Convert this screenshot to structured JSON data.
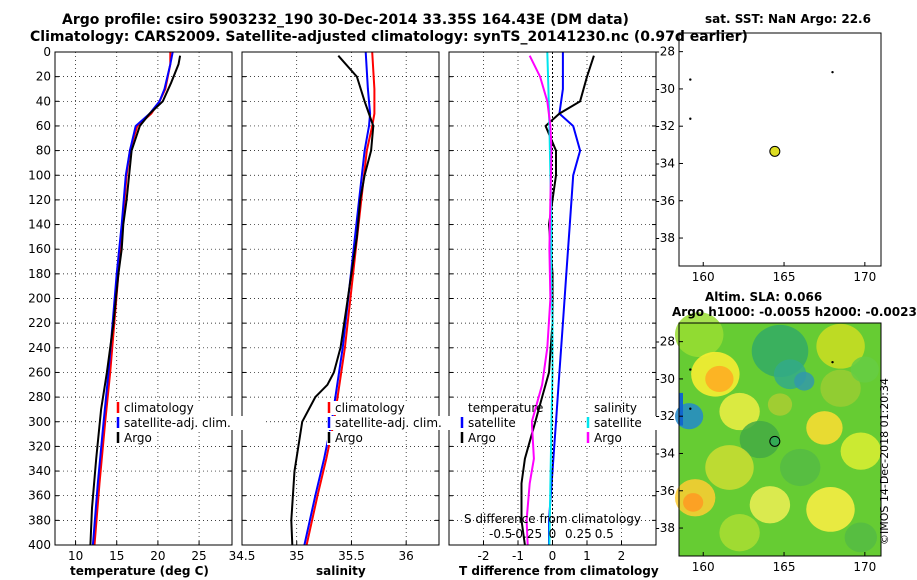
{
  "header": {
    "title_line1": "Argo profile: csiro 5903232_190 30-Dec-2014 33.35S 164.43E (DM data)",
    "title_line2": "Climatology: CARS2009. Satellite-adjusted climatology: synTS_20141230.nc (0.97d earlier)"
  },
  "colors": {
    "climatology": "#ff0000",
    "satellite": "#0000ff",
    "argo": "#000000",
    "sal_satellite": "#00e5ee",
    "sal_argo": "#ff00ff"
  },
  "chart_data": [
    {
      "id": "temperature",
      "type": "line",
      "xlabel": "temperature (deg C)",
      "ylabel": "",
      "xlim": [
        7.5,
        29
      ],
      "ylim": [
        400,
        0
      ],
      "xticks": [
        10,
        15,
        20,
        25
      ],
      "yticks": [
        0,
        20,
        40,
        60,
        80,
        100,
        120,
        140,
        160,
        180,
        200,
        220,
        240,
        260,
        280,
        300,
        320,
        340,
        360,
        380,
        400
      ],
      "legend": [
        "climatology",
        "satellite-adj. clim.",
        "Argo"
      ],
      "series": [
        {
          "name": "climatology",
          "color": "#ff0000",
          "x": [
            21.5,
            21.5,
            20.9,
            20.2,
            19.2,
            17.5,
            16.6,
            16.2,
            15.7,
            15.2,
            14.7,
            14.2,
            13.6,
            12.9,
            12.3
          ],
          "y": [
            0,
            10,
            30,
            40,
            50,
            60,
            80,
            100,
            140,
            180,
            220,
            260,
            300,
            350,
            400
          ]
        },
        {
          "name": "satellite-adj. clim.",
          "color": "#0000ff",
          "x": [
            21.8,
            21.5,
            20.8,
            20.2,
            19.0,
            17.3,
            16.6,
            16.1,
            15.6,
            15.0,
            14.5,
            14.0,
            13.4,
            12.7,
            12.1
          ],
          "y": [
            0,
            10,
            30,
            40,
            50,
            60,
            80,
            100,
            140,
            180,
            220,
            260,
            300,
            350,
            400
          ]
        },
        {
          "name": "Argo",
          "color": "#000000",
          "x": [
            22.7,
            22.5,
            21.6,
            20.6,
            19.0,
            17.8,
            16.8,
            16.5,
            16.2,
            15.8,
            15.6,
            15.2,
            14.9,
            14.6,
            14.2,
            13.8,
            13.1,
            12.5,
            12.0,
            11.8
          ],
          "y": [
            3,
            10,
            25,
            40,
            50,
            60,
            80,
            100,
            120,
            140,
            160,
            180,
            200,
            220,
            240,
            260,
            290,
            330,
            370,
            400
          ]
        }
      ]
    },
    {
      "id": "salinity",
      "type": "line",
      "xlabel": "salinity",
      "ylabel": "",
      "xlim": [
        34.5,
        36.3
      ],
      "ylim": [
        400,
        0
      ],
      "xticks": [
        34.5,
        35,
        35.5,
        36
      ],
      "tick_labels": [
        "34.5",
        "35",
        "35.5",
        "36"
      ],
      "legend": [
        "climatology",
        "satellite-adj. clim.",
        "Argo"
      ],
      "series": [
        {
          "name": "climatology",
          "color": "#ff0000",
          "x": [
            35.69,
            35.71,
            35.71,
            35.69,
            35.64,
            35.59,
            35.54,
            35.49,
            35.44,
            35.39,
            35.34,
            35.27,
            35.19,
            35.09
          ],
          "y": [
            0,
            30,
            50,
            60,
            80,
            120,
            160,
            200,
            240,
            270,
            300,
            330,
            360,
            400
          ]
        },
        {
          "name": "satellite-adj. clim.",
          "color": "#0000ff",
          "x": [
            35.63,
            35.65,
            35.67,
            35.66,
            35.62,
            35.57,
            35.52,
            35.47,
            35.42,
            35.37,
            35.32,
            35.25,
            35.17,
            35.07
          ],
          "y": [
            0,
            30,
            50,
            60,
            80,
            120,
            160,
            200,
            240,
            270,
            300,
            330,
            360,
            400
          ]
        },
        {
          "name": "Argo",
          "color": "#000000",
          "x": [
            35.38,
            35.55,
            35.62,
            35.7,
            35.68,
            35.62,
            35.58,
            35.55,
            35.5,
            35.45,
            35.4,
            35.34,
            35.28,
            35.17,
            35.05,
            34.98,
            34.95,
            34.96
          ],
          "y": [
            3,
            20,
            40,
            60,
            80,
            100,
            120,
            150,
            180,
            210,
            240,
            260,
            270,
            280,
            300,
            340,
            380,
            400
          ]
        }
      ]
    },
    {
      "id": "difference",
      "type": "line",
      "xlabel": "T difference from climatology",
      "x2label": "S difference from climatology",
      "xlim": [
        -3,
        3
      ],
      "ylim": [
        400,
        0
      ],
      "xticks": [
        -2,
        -1,
        0,
        1,
        2
      ],
      "x2ticks": [
        -0.5,
        -0.25,
        0,
        0.25,
        0.5
      ],
      "legend_temperature": {
        "title": "temperature",
        "items": [
          "satellite",
          "Argo"
        ]
      },
      "legend_salinity": {
        "title": "salinity",
        "items": [
          "satellite",
          "Argo"
        ]
      },
      "series": [
        {
          "name": "temperature satellite",
          "color": "#0000ff",
          "x": [
            0.3,
            0.3,
            0.2,
            0.6,
            0.8,
            0.6,
            0.5,
            0.4,
            0.3,
            0.2,
            0.1,
            0.0,
            -0.1,
            -0.1
          ],
          "y": [
            0,
            30,
            50,
            60,
            80,
            100,
            140,
            180,
            220,
            260,
            300,
            340,
            380,
            400
          ]
        },
        {
          "name": "temperature Argo",
          "color": "#000000",
          "x": [
            1.2,
            1.0,
            0.8,
            0.2,
            -0.2,
            0.1,
            0.1,
            -0.1,
            0.0,
            0.0,
            -0.1,
            -0.3,
            -0.5,
            -0.8,
            -0.9,
            -0.9,
            -0.8
          ],
          "y": [
            3,
            20,
            40,
            50,
            60,
            80,
            100,
            140,
            180,
            220,
            260,
            280,
            300,
            330,
            350,
            380,
            400
          ]
        },
        {
          "name": "salinity satellite",
          "color": "#00e5ee",
          "x": [
            -0.05,
            -0.04,
            -0.03,
            -0.02,
            -0.01,
            -0.01,
            0.0,
            0.0,
            -0.01,
            -0.02,
            -0.03
          ],
          "y": [
            0,
            30,
            60,
            100,
            140,
            180,
            220,
            260,
            300,
            350,
            400
          ]
        },
        {
          "name": "salinity Argo",
          "color": "#ff00ff",
          "x": [
            -0.22,
            -0.12,
            -0.05,
            -0.02,
            -0.01,
            -0.02,
            -0.03,
            -0.02,
            -0.05,
            -0.1,
            -0.2,
            -0.18,
            -0.22,
            -0.25,
            -0.24
          ],
          "y": [
            3,
            20,
            40,
            60,
            80,
            120,
            160,
            200,
            240,
            270,
            300,
            330,
            350,
            380,
            400
          ]
        }
      ]
    },
    {
      "id": "sst_map",
      "type": "scatter",
      "title": "sat. SST: NaN Argo: 22.6",
      "xlim": [
        158.5,
        171
      ],
      "ylim": [
        -39.5,
        -27
      ],
      "xticks": [
        160,
        165,
        170
      ],
      "yticks": [
        -28,
        -30,
        -32,
        -34,
        -36,
        -38
      ],
      "argo_position": [
        164.43,
        -33.35
      ]
    },
    {
      "id": "sla_map",
      "type": "heatmap",
      "title_line1": "Altim. SLA: 0.066",
      "title_line2": "Argo h1000: -0.0055 h2000: -0.0023",
      "xlim": [
        158.5,
        171
      ],
      "ylim": [
        -39.5,
        -27
      ],
      "xticks": [
        160,
        165,
        170
      ],
      "yticks": [
        -28,
        -30,
        -32,
        -34,
        -36,
        -38
      ],
      "argo_position": [
        164.43,
        -33.35
      ]
    }
  ],
  "credit": "©IMOS 14-Dec-2018 01:20:34"
}
